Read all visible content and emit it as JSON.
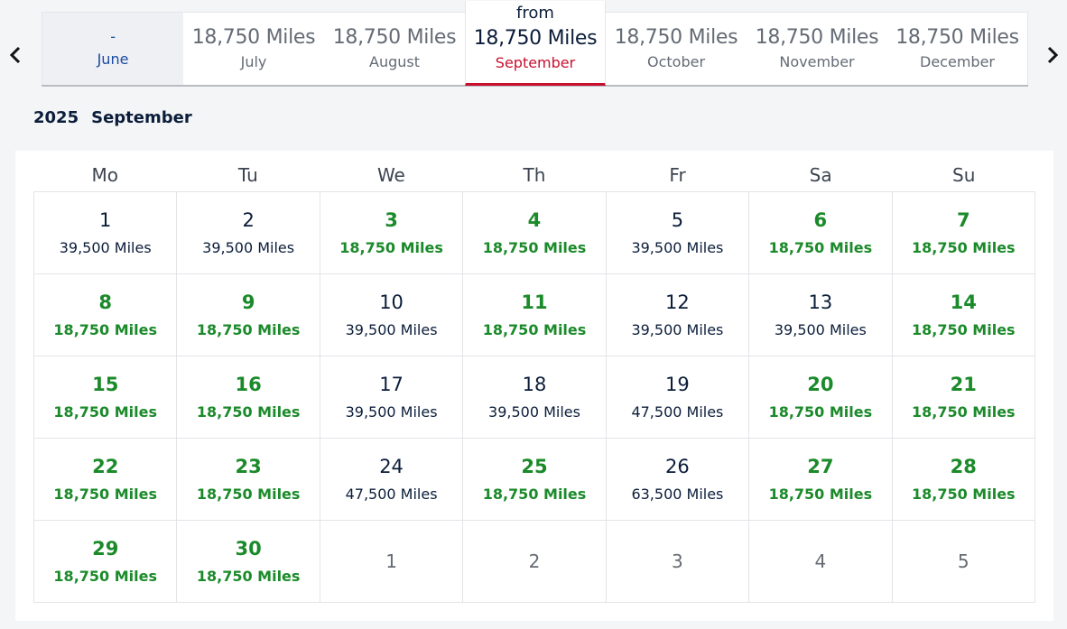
{
  "months": [
    {
      "price": "-",
      "name": "June",
      "state": "disabled"
    },
    {
      "price": "18,750 Miles",
      "name": "July",
      "state": "normal"
    },
    {
      "price": "18,750 Miles",
      "name": "August",
      "state": "normal"
    },
    {
      "from": "from",
      "price": "18,750 Miles",
      "name": "September",
      "state": "selected"
    },
    {
      "price": "18,750 Miles",
      "name": "October",
      "state": "normal"
    },
    {
      "price": "18,750 Miles",
      "name": "November",
      "state": "normal"
    },
    {
      "price": "18,750 Miles",
      "name": "December",
      "state": "normal"
    }
  ],
  "heading": {
    "year": "2025",
    "month": "September"
  },
  "weekdays": [
    "Mo",
    "Tu",
    "We",
    "Th",
    "Fr",
    "Sa",
    "Su"
  ],
  "days": [
    {
      "num": "1",
      "miles": "39,500 Miles",
      "type": "std"
    },
    {
      "num": "2",
      "miles": "39,500 Miles",
      "type": "std"
    },
    {
      "num": "3",
      "miles": "18,750 Miles",
      "type": "saver"
    },
    {
      "num": "4",
      "miles": "18,750 Miles",
      "type": "saver"
    },
    {
      "num": "5",
      "miles": "39,500 Miles",
      "type": "std"
    },
    {
      "num": "6",
      "miles": "18,750 Miles",
      "type": "saver"
    },
    {
      "num": "7",
      "miles": "18,750 Miles",
      "type": "saver"
    },
    {
      "num": "8",
      "miles": "18,750 Miles",
      "type": "saver"
    },
    {
      "num": "9",
      "miles": "18,750 Miles",
      "type": "saver"
    },
    {
      "num": "10",
      "miles": "39,500 Miles",
      "type": "std"
    },
    {
      "num": "11",
      "miles": "18,750 Miles",
      "type": "saver"
    },
    {
      "num": "12",
      "miles": "39,500 Miles",
      "type": "std"
    },
    {
      "num": "13",
      "miles": "39,500 Miles",
      "type": "std"
    },
    {
      "num": "14",
      "miles": "18,750 Miles",
      "type": "saver"
    },
    {
      "num": "15",
      "miles": "18,750 Miles",
      "type": "saver"
    },
    {
      "num": "16",
      "miles": "18,750 Miles",
      "type": "saver"
    },
    {
      "num": "17",
      "miles": "39,500 Miles",
      "type": "std"
    },
    {
      "num": "18",
      "miles": "39,500 Miles",
      "type": "std"
    },
    {
      "num": "19",
      "miles": "47,500 Miles",
      "type": "std"
    },
    {
      "num": "20",
      "miles": "18,750 Miles",
      "type": "saver"
    },
    {
      "num": "21",
      "miles": "18,750 Miles",
      "type": "saver"
    },
    {
      "num": "22",
      "miles": "18,750 Miles",
      "type": "saver"
    },
    {
      "num": "23",
      "miles": "18,750 Miles",
      "type": "saver"
    },
    {
      "num": "24",
      "miles": "47,500 Miles",
      "type": "std"
    },
    {
      "num": "25",
      "miles": "18,750 Miles",
      "type": "saver"
    },
    {
      "num": "26",
      "miles": "63,500 Miles",
      "type": "std"
    },
    {
      "num": "27",
      "miles": "18,750 Miles",
      "type": "saver"
    },
    {
      "num": "28",
      "miles": "18,750 Miles",
      "type": "saver"
    },
    {
      "num": "29",
      "miles": "18,750 Miles",
      "type": "saver"
    },
    {
      "num": "30",
      "miles": "18,750 Miles",
      "type": "saver"
    },
    {
      "num": "1",
      "miles": "",
      "type": "outside"
    },
    {
      "num": "2",
      "miles": "",
      "type": "outside"
    },
    {
      "num": "3",
      "miles": "",
      "type": "outside"
    },
    {
      "num": "4",
      "miles": "",
      "type": "outside"
    },
    {
      "num": "5",
      "miles": "",
      "type": "outside"
    }
  ],
  "icons": {
    "prev": "chevron-left-icon",
    "next": "chevron-right-icon"
  },
  "colors": {
    "saver": "#1b8a2a",
    "standard": "#0b1d3a",
    "selected_accent": "#c8102e",
    "link_blue": "#1a4aa3"
  }
}
